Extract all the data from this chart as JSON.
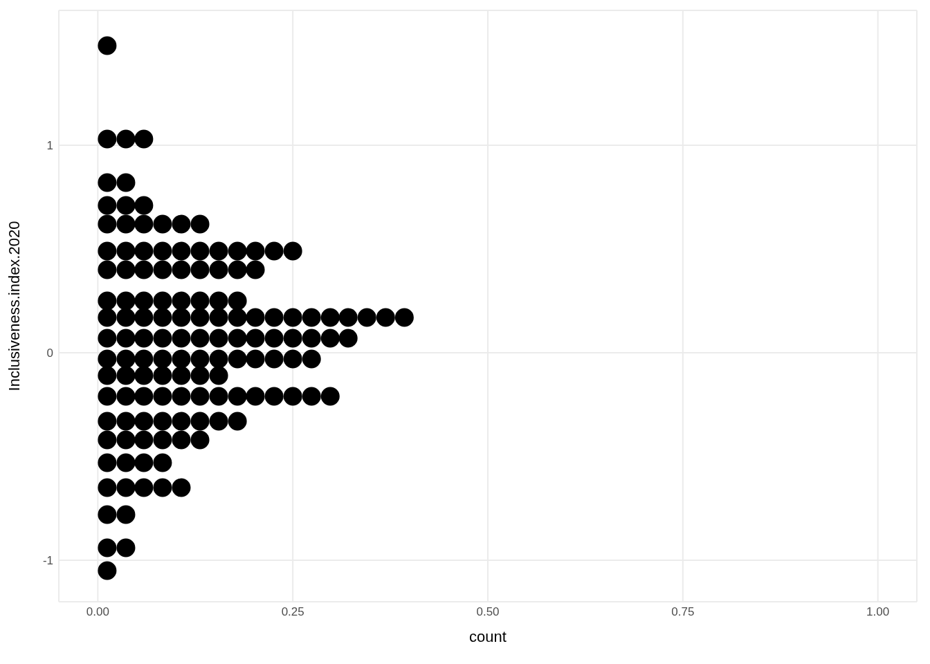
{
  "chart_data": {
    "type": "scatter",
    "xlabel": "count",
    "ylabel": "Inclusiveness.index.2020",
    "xlim": [
      -0.05,
      1.05
    ],
    "ylim": [
      -1.2,
      1.65
    ],
    "xticks": [
      {
        "value": 0,
        "label": "0.00"
      },
      {
        "value": 0.25,
        "label": "0.25"
      },
      {
        "value": 0.5,
        "label": "0.50"
      },
      {
        "value": 0.75,
        "label": "0.75"
      },
      {
        "value": 1,
        "label": "1.00"
      }
    ],
    "yticks": [
      -1,
      0,
      1
    ],
    "grid": true,
    "marker": "circle",
    "series": [
      {
        "color": "#000000",
        "x": [
          0.012
        ],
        "values": [
          1.48
        ]
      },
      {
        "color": "#000000",
        "x": [
          0.012,
          0.036,
          0.059
        ],
        "values": [
          1.03,
          1.03,
          1.03
        ]
      },
      {
        "color": "#000000",
        "x": [
          0.012,
          0.036
        ],
        "values": [
          0.82,
          0.82
        ]
      },
      {
        "color": "#000000",
        "x": [
          0.012,
          0.036,
          0.059
        ],
        "values": [
          0.71,
          0.71,
          0.71
        ]
      },
      {
        "color": "#000000",
        "x": [
          0.012,
          0.036,
          0.059,
          0.083,
          0.107,
          0.131
        ],
        "values": [
          0.62,
          0.62,
          0.62,
          0.62,
          0.62,
          0.62
        ]
      },
      {
        "color": "#000000",
        "x": [
          0.012,
          0.036,
          0.059,
          0.083,
          0.107,
          0.131,
          0.155,
          0.179,
          0.202,
          0.226,
          0.25
        ],
        "values": [
          0.49,
          0.49,
          0.49,
          0.49,
          0.49,
          0.49,
          0.49,
          0.49,
          0.49,
          0.49,
          0.49
        ]
      },
      {
        "color": "#000000",
        "x": [
          0.012,
          0.036,
          0.059,
          0.083,
          0.107,
          0.131,
          0.155,
          0.179,
          0.202
        ],
        "values": [
          0.4,
          0.4,
          0.4,
          0.4,
          0.4,
          0.4,
          0.4,
          0.4,
          0.4
        ]
      },
      {
        "color": "#000000",
        "x": [
          0.012,
          0.036,
          0.059,
          0.083,
          0.107,
          0.131,
          0.155,
          0.179
        ],
        "values": [
          0.25,
          0.25,
          0.25,
          0.25,
          0.25,
          0.25,
          0.25,
          0.25
        ]
      },
      {
        "color": "#000000",
        "x": [
          0.012,
          0.036,
          0.059,
          0.083,
          0.107,
          0.131,
          0.155,
          0.179,
          0.202,
          0.226,
          0.25,
          0.274,
          0.298,
          0.321,
          0.345,
          0.369,
          0.393
        ],
        "values": [
          0.17,
          0.17,
          0.17,
          0.17,
          0.17,
          0.17,
          0.17,
          0.17,
          0.17,
          0.17,
          0.17,
          0.17,
          0.17,
          0.17,
          0.17,
          0.17,
          0.17
        ]
      },
      {
        "color": "#000000",
        "x": [
          0.012,
          0.036,
          0.059,
          0.083,
          0.107,
          0.131,
          0.155,
          0.179,
          0.202,
          0.226,
          0.25,
          0.274,
          0.298,
          0.321
        ],
        "values": [
          0.07,
          0.07,
          0.07,
          0.07,
          0.07,
          0.07,
          0.07,
          0.07,
          0.07,
          0.07,
          0.07,
          0.07,
          0.07,
          0.07
        ]
      },
      {
        "color": "#000000",
        "x": [
          0.012,
          0.036,
          0.059,
          0.083,
          0.107,
          0.131,
          0.155,
          0.179,
          0.202,
          0.226,
          0.25,
          0.274
        ],
        "values": [
          -0.03,
          -0.03,
          -0.03,
          -0.03,
          -0.03,
          -0.03,
          -0.03,
          -0.03,
          -0.03,
          -0.03,
          -0.03,
          -0.03
        ]
      },
      {
        "color": "#000000",
        "x": [
          0.012,
          0.036,
          0.059,
          0.083,
          0.107,
          0.131,
          0.155
        ],
        "values": [
          -0.11,
          -0.11,
          -0.11,
          -0.11,
          -0.11,
          -0.11,
          -0.11
        ]
      },
      {
        "color": "#000000",
        "x": [
          0.012,
          0.036,
          0.059,
          0.083,
          0.107,
          0.131,
          0.155,
          0.179,
          0.202,
          0.226,
          0.25,
          0.274,
          0.298
        ],
        "values": [
          -0.21,
          -0.21,
          -0.21,
          -0.21,
          -0.21,
          -0.21,
          -0.21,
          -0.21,
          -0.21,
          -0.21,
          -0.21,
          -0.21,
          -0.21
        ]
      },
      {
        "color": "#000000",
        "x": [
          0.012,
          0.036,
          0.059,
          0.083,
          0.107,
          0.131,
          0.155,
          0.179
        ],
        "values": [
          -0.33,
          -0.33,
          -0.33,
          -0.33,
          -0.33,
          -0.33,
          -0.33,
          -0.33
        ]
      },
      {
        "color": "#000000",
        "x": [
          0.012,
          0.036,
          0.059,
          0.083,
          0.107,
          0.131
        ],
        "values": [
          -0.42,
          -0.42,
          -0.42,
          -0.42,
          -0.42,
          -0.42
        ]
      },
      {
        "color": "#000000",
        "x": [
          0.012,
          0.036,
          0.059,
          0.083
        ],
        "values": [
          -0.53,
          -0.53,
          -0.53,
          -0.53
        ]
      },
      {
        "color": "#000000",
        "x": [
          0.012,
          0.036,
          0.059,
          0.083,
          0.107
        ],
        "values": [
          -0.65,
          -0.65,
          -0.65,
          -0.65,
          -0.65
        ]
      },
      {
        "color": "#000000",
        "x": [
          0.012,
          0.036
        ],
        "values": [
          -0.78,
          -0.78
        ]
      },
      {
        "color": "#000000",
        "x": [
          0.012,
          0.036
        ],
        "values": [
          -0.94,
          -0.94
        ]
      },
      {
        "color": "#000000",
        "x": [
          0.012
        ],
        "values": [
          -1.05
        ]
      }
    ]
  }
}
